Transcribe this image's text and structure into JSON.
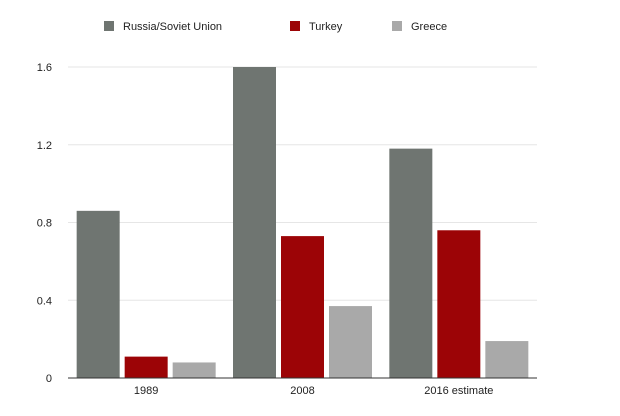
{
  "chart_data": {
    "type": "bar",
    "title": "",
    "xlabel": "",
    "ylabel": "",
    "categories": [
      "1989",
      "2008",
      "2016 estimate"
    ],
    "series": [
      {
        "name": "Russia/Soviet Union",
        "color": "#6f7571",
        "values": [
          0.86,
          1.6,
          1.18
        ]
      },
      {
        "name": "Turkey",
        "color": "#9c0406",
        "values": [
          0.11,
          0.73,
          0.76
        ]
      },
      {
        "name": "Greece",
        "color": "#a9a9a9",
        "values": [
          0.08,
          0.37,
          0.19
        ]
      }
    ],
    "ylim": [
      0,
      1.6
    ],
    "yticks": [
      "0",
      "0.4",
      "0.8",
      "1.2",
      "1.6"
    ],
    "grid": true,
    "legend_position": "top"
  }
}
